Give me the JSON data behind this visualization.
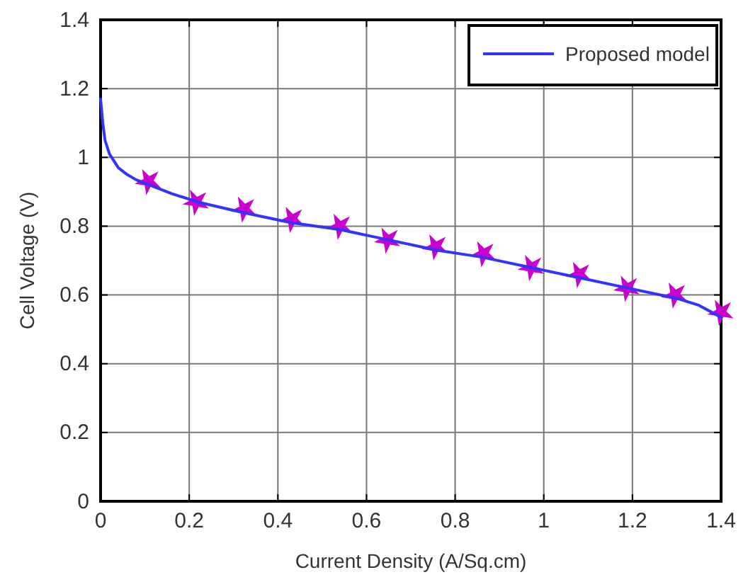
{
  "chart_data": {
    "type": "scatter",
    "xlabel": "Current Density (A/Sq.cm)",
    "ylabel": "Cell Voltage (V)",
    "xlim": [
      0,
      1.4
    ],
    "ylim": [
      0,
      1.4
    ],
    "xticks": [
      0,
      0.2,
      0.4,
      0.6,
      0.8,
      1,
      1.2,
      1.4
    ],
    "yticks": [
      0,
      0.2,
      0.4,
      0.6,
      0.8,
      1,
      1.2,
      1.4
    ],
    "grid": true,
    "legend": "top right",
    "series": [
      {
        "color": "#cc00cc",
        "marker": "star",
        "x": [
          0.108,
          0.216,
          0.324,
          0.432,
          0.54,
          0.648,
          0.756,
          0.864,
          0.972,
          1.08,
          1.188,
          1.296,
          1.4
        ],
        "values": [
          0.93,
          0.87,
          0.85,
          0.82,
          0.8,
          0.76,
          0.74,
          0.72,
          0.68,
          0.66,
          0.62,
          0.6,
          0.55
        ]
      },
      {
        "type": "line",
        "name": "Proposed model",
        "color": "#3333ff",
        "x": [
          0,
          0.005,
          0.01,
          0.02,
          0.04,
          0.06,
          0.08,
          0.11,
          0.16,
          0.22,
          0.32,
          0.43,
          0.54,
          0.65,
          0.76,
          0.86,
          0.97,
          1.08,
          1.19,
          1.3,
          1.35,
          1.4
        ],
        "values": [
          1.17,
          1.1,
          1.05,
          1.01,
          0.97,
          0.95,
          0.935,
          0.92,
          0.895,
          0.87,
          0.84,
          0.81,
          0.79,
          0.76,
          0.73,
          0.71,
          0.68,
          0.65,
          0.62,
          0.59,
          0.57,
          0.535
        ]
      }
    ]
  }
}
